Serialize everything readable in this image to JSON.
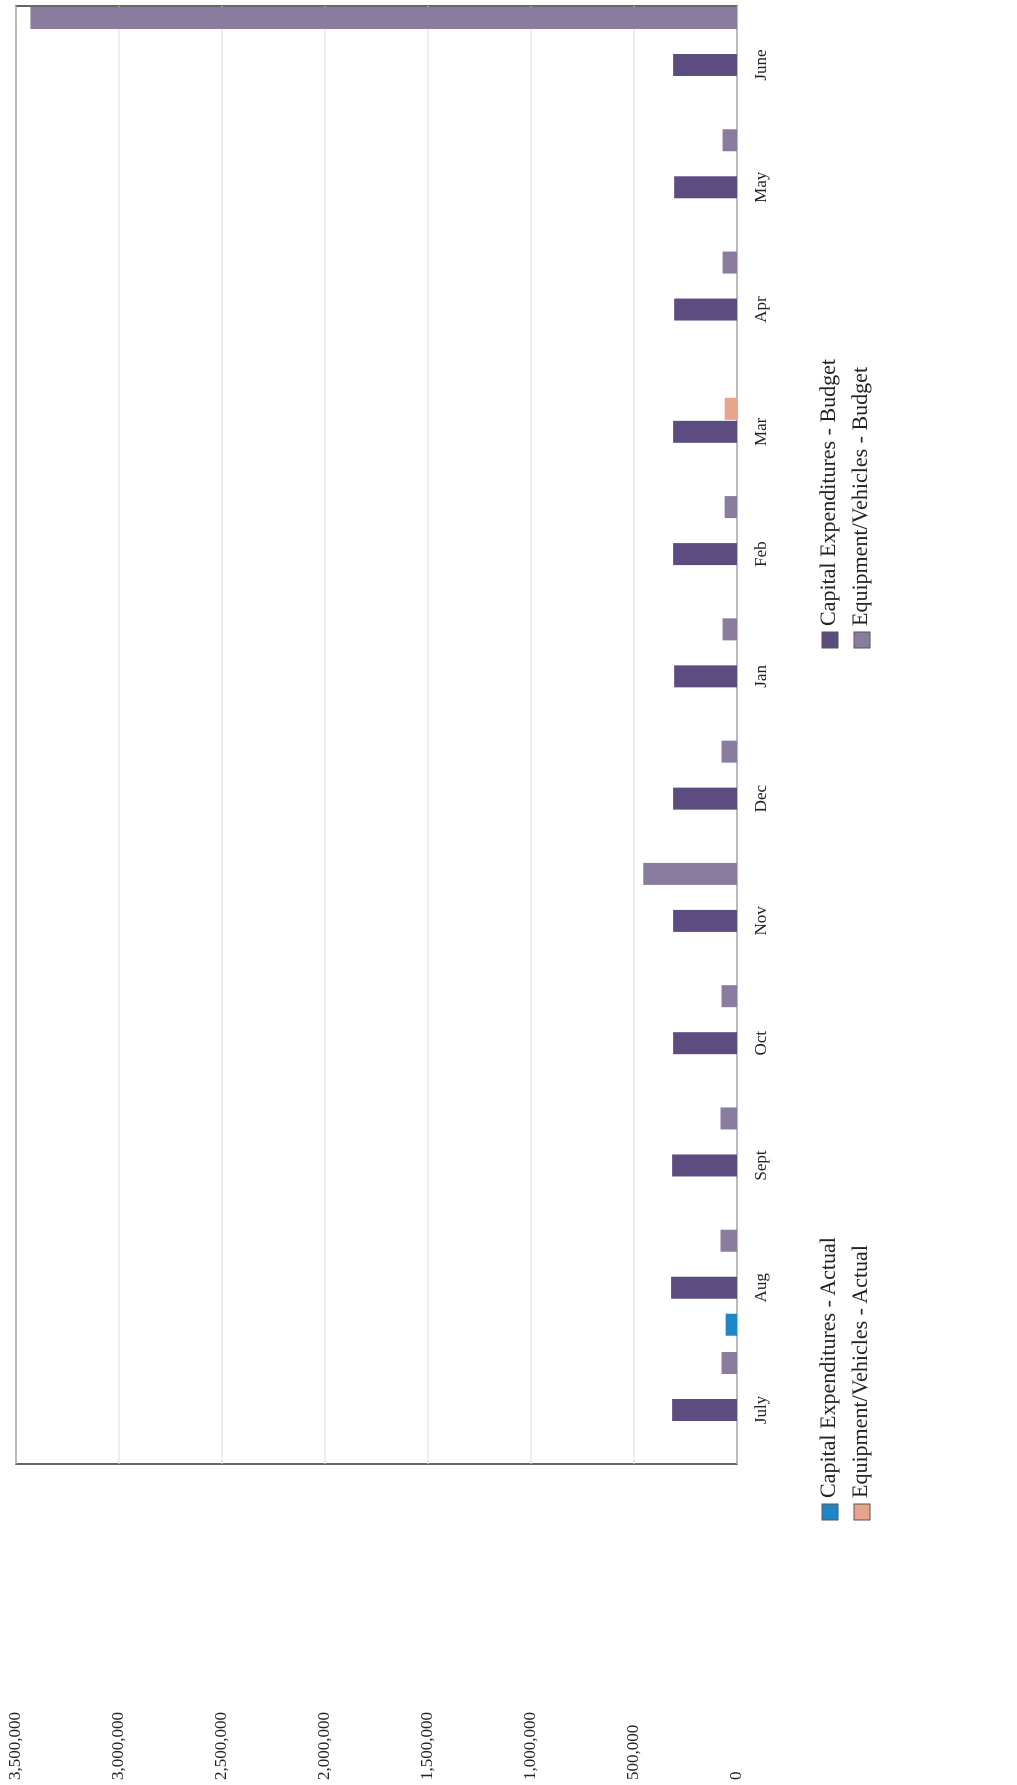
{
  "chart_data": {
    "type": "bar",
    "orientation": "horizontal",
    "categories": [
      "July",
      "Aug",
      "Sept",
      "Oct",
      "Nov",
      "Dec",
      "Jan",
      "Feb",
      "Mar",
      "Apr",
      "May",
      "June"
    ],
    "series": [
      {
        "name": "Capital Expenditures - Actual",
        "color": "#1f86c8",
        "values": [
          null,
          55000,
          null,
          null,
          null,
          null,
          null,
          null,
          null,
          null,
          null,
          null
        ]
      },
      {
        "name": "Equipment/Vehicles - Actual",
        "color": "#e8a58c",
        "values": [
          null,
          null,
          null,
          null,
          null,
          null,
          null,
          null,
          60000,
          null,
          null,
          null
        ]
      },
      {
        "name": "Capital Expenditures - Budget",
        "color": "#5c4c80",
        "values": [
          315000,
          320000,
          315000,
          310000,
          310000,
          310000,
          305000,
          310000,
          310000,
          305000,
          305000,
          310000
        ]
      },
      {
        "name": "Equipment/Vehicles - Budget",
        "color": "#8a7c9f",
        "values": [
          75000,
          80000,
          80000,
          75000,
          455000,
          75000,
          70000,
          60000,
          null,
          70000,
          70000,
          3430000
        ]
      }
    ],
    "xlim": [
      0,
      3500000
    ],
    "xticks": [
      {
        "value": 0,
        "label": "0"
      },
      {
        "value": 500000,
        "label": "500,000"
      },
      {
        "value": 1000000,
        "label": "1,000,000"
      },
      {
        "value": 1500000,
        "label": "1,500,000"
      },
      {
        "value": 2000000,
        "label": "2,000,000"
      },
      {
        "value": 2500000,
        "label": "2,500,000"
      },
      {
        "value": 3000000,
        "label": "3,000,000"
      },
      {
        "value": 3500000,
        "label": "3,500,000"
      }
    ],
    "grid": true
  }
}
